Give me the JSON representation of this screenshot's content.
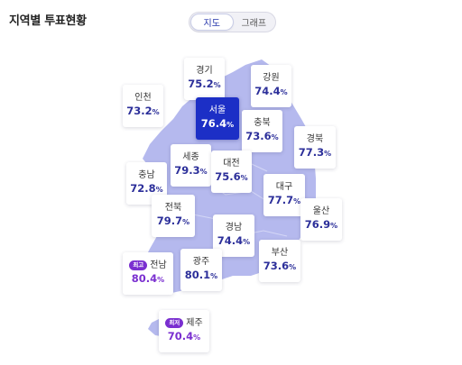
{
  "header": {
    "title": "지역별 투표현황"
  },
  "view_toggle": {
    "map_label": "지도",
    "graph_label": "그래프",
    "active": "map"
  },
  "colors": {
    "map_fill": "#b5b9ee",
    "selected": "#1c2fc6",
    "value_text": "#2c2f9a",
    "badge": "#7a2fd0"
  },
  "regions": {
    "gyeonggi": {
      "name": "경기",
      "value": "75.2",
      "unit": "%"
    },
    "gangwon": {
      "name": "강원",
      "value": "74.4",
      "unit": "%"
    },
    "incheon": {
      "name": "인천",
      "value": "73.2",
      "unit": "%"
    },
    "seoul": {
      "name": "서울",
      "value": "76.4",
      "unit": "%"
    },
    "chungbuk": {
      "name": "충북",
      "value": "73.6",
      "unit": "%"
    },
    "gyeongbuk": {
      "name": "경북",
      "value": "77.3",
      "unit": "%"
    },
    "sejong": {
      "name": "세종",
      "value": "79.3",
      "unit": "%"
    },
    "daejeon": {
      "name": "대전",
      "value": "75.6",
      "unit": "%"
    },
    "chungnam": {
      "name": "충남",
      "value": "72.8",
      "unit": "%"
    },
    "daegu": {
      "name": "대구",
      "value": "77.7",
      "unit": "%"
    },
    "jeonbuk": {
      "name": "전북",
      "value": "79.7",
      "unit": "%"
    },
    "ulsan": {
      "name": "울산",
      "value": "76.9",
      "unit": "%"
    },
    "gyeongnam": {
      "name": "경남",
      "value": "74.4",
      "unit": "%"
    },
    "busan": {
      "name": "부산",
      "value": "73.6",
      "unit": "%"
    },
    "jeonnam": {
      "name": "전남",
      "value": "80.4",
      "unit": "%",
      "badge": "최고"
    },
    "gwangju": {
      "name": "광주",
      "value": "80.1",
      "unit": "%"
    },
    "jeju": {
      "name": "제주",
      "value": "70.4",
      "unit": "%",
      "badge": "최저"
    }
  }
}
